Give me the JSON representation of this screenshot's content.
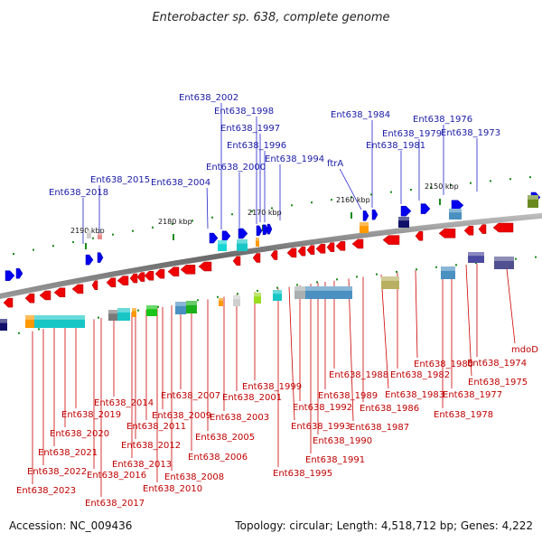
{
  "title": "Enterobacter sp. 638, complete genome",
  "footer": {
    "accession": "Accession: NC_009436",
    "summary": "Topology: circular; Length: 4,518,712 bp; Genes: 4,222"
  },
  "colors": {
    "forward": "#0000ee",
    "reverse": "#ee0000",
    "blue_label": "#1a1aa6",
    "red_label": "#c00000",
    "leader_blue": "#2222cc",
    "leader_red": "#cc0000",
    "backbone": "#7a7a7a",
    "tick": "#1a8a1a"
  },
  "scale_marks": [
    {
      "label": "2190 kbp"
    },
    {
      "label": "2180 kbp"
    },
    {
      "label": "2170 kbp"
    },
    {
      "label": "2160 kbp"
    },
    {
      "label": "2150 kbp"
    }
  ],
  "top_genes": [
    "Ent638_2018",
    "Ent638_2015",
    "Ent638_2004",
    "Ent638_2002",
    "Ent638_2000",
    "Ent638_1998",
    "Ent638_1997",
    "Ent638_1996",
    "Ent638_1994",
    "ftrA",
    "Ent638_1984",
    "Ent638_1981",
    "Ent638_1979",
    "Ent638_1976",
    "Ent638_1973"
  ],
  "bottom_genes": [
    "Ent638_2023",
    "Ent638_2022",
    "Ent638_2021",
    "Ent638_2020",
    "Ent638_2019",
    "Ent638_2017",
    "Ent638_2016",
    "Ent638_2014",
    "Ent638_2013",
    "Ent638_2012",
    "Ent638_2011",
    "Ent638_2010",
    "Ent638_2009",
    "Ent638_2008",
    "Ent638_2007",
    "Ent638_2006",
    "Ent638_2005",
    "Ent638_2003",
    "Ent638_2001",
    "Ent638_1999",
    "Ent638_1995",
    "Ent638_1993",
    "Ent638_1992",
    "Ent638_1991",
    "Ent638_1990",
    "Ent638_1989",
    "Ent638_1988",
    "Ent638_1987",
    "Ent638_1986",
    "Ent638_1983",
    "Ent638_1982",
    "Ent638_1980",
    "Ent638_1978",
    "Ent638_1977",
    "Ent638_1975",
    "Ent638_1974",
    "mdoD"
  ]
}
